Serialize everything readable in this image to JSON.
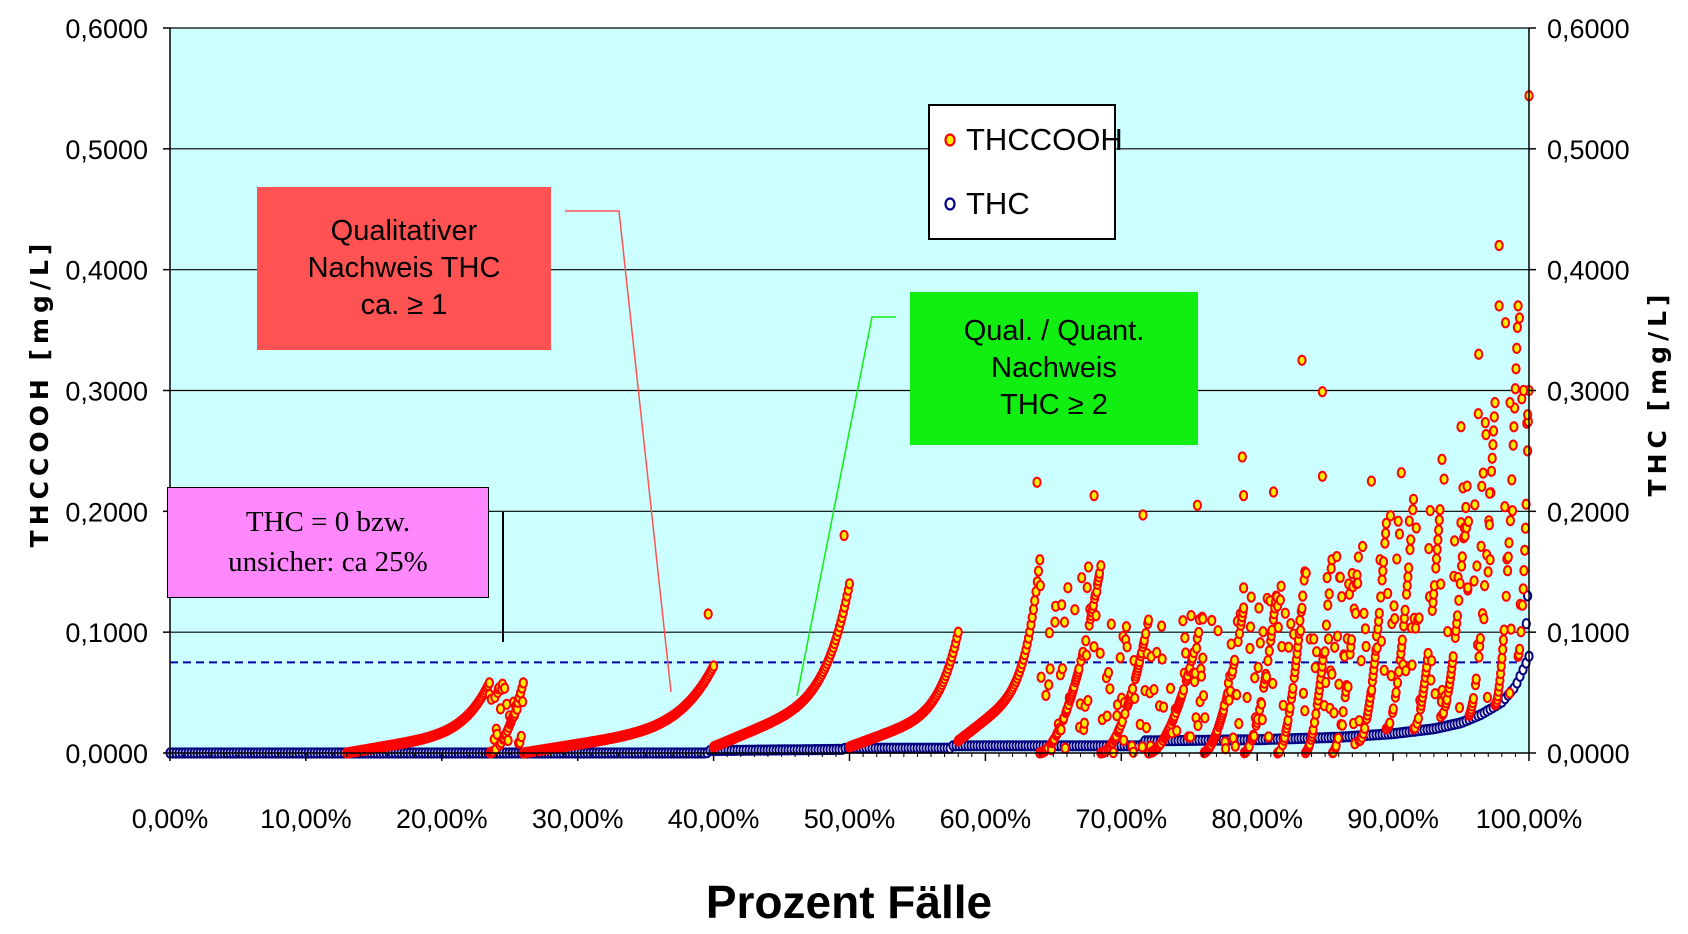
{
  "chart_data": {
    "type": "scatter",
    "xlabel": "Prozent Fälle",
    "ylabel_left": "THCCOOH [mg/L]",
    "ylabel_right": "THC [mg/L]",
    "xlim": [
      0,
      100
    ],
    "ylim": [
      0,
      0.6
    ],
    "y2lim": [
      0,
      0.6
    ],
    "x_ticks": [
      "0,00%",
      "10,00%",
      "20,00%",
      "30,00%",
      "40,00%",
      "50,00%",
      "60,00%",
      "70,00%",
      "80,00%",
      "90,00%",
      "100,00%"
    ],
    "y_ticks": [
      "0,0000",
      "0,1000",
      "0,2000",
      "0,3000",
      "0,4000",
      "0,5000",
      "0,6000"
    ],
    "y2_ticks": [
      "0,0000",
      "0,1000",
      "0,2000",
      "0,3000",
      "0,4000",
      "0,5000",
      "0,6000"
    ],
    "grid": true,
    "plot_background": "#ccffff",
    "reference_line": {
      "y": 0.075,
      "style": "dashed",
      "color": "#0000aa"
    },
    "legend": {
      "placement": "top-right"
    },
    "series": [
      {
        "name": "THCCOOH",
        "marker_fill": "#ffee00",
        "marker_edge": "#ff0000",
        "description": "sorted per THC group, values rising within each group",
        "segments": [
          {
            "x_start": 13,
            "x_end": 23.5,
            "y_start": 0.0,
            "y_end": 0.058
          },
          {
            "x_start": 23.5,
            "x_end": 26,
            "y_start": 0.0,
            "y_end": 0.058
          },
          {
            "x_start": 26,
            "x_end": 40,
            "y_start": 0.0,
            "y_end": 0.072
          },
          {
            "x_start": 40,
            "x_end": 50,
            "y_start": 0.005,
            "y_end": 0.14
          },
          {
            "x_start": 50,
            "x_end": 58,
            "y_start": 0.005,
            "y_end": 0.1
          },
          {
            "x_start": 58,
            "x_end": 64,
            "y_start": 0.01,
            "y_end": 0.16
          },
          {
            "x_start": 64,
            "x_end": 68.5,
            "y_start": 0.0,
            "y_end": 0.155
          },
          {
            "x_start": 68.5,
            "x_end": 72,
            "y_start": 0.0,
            "y_end": 0.11
          },
          {
            "x_start": 72,
            "x_end": 76,
            "y_start": 0.0,
            "y_end": 0.115
          },
          {
            "x_start": 76,
            "x_end": 79,
            "y_start": 0.0,
            "y_end": 0.12
          },
          {
            "x_start": 79,
            "x_end": 81.5,
            "y_start": 0.0,
            "y_end": 0.14
          },
          {
            "x_start": 81.5,
            "x_end": 83.5,
            "y_start": 0.0,
            "y_end": 0.15
          },
          {
            "x_start": 83.5,
            "x_end": 85.5,
            "y_start": 0.0,
            "y_end": 0.16
          },
          {
            "x_start": 85.5,
            "x_end": 87.5,
            "y_start": 0.0,
            "y_end": 0.17
          },
          {
            "x_start": 87.5,
            "x_end": 89.5,
            "y_start": 0.01,
            "y_end": 0.19
          },
          {
            "x_start": 89.5,
            "x_end": 91.5,
            "y_start": 0.02,
            "y_end": 0.21
          },
          {
            "x_start": 91.5,
            "x_end": 93.5,
            "y_start": 0.02,
            "y_end": 0.21
          },
          {
            "x_start": 93.5,
            "x_end": 95.5,
            "y_start": 0.03,
            "y_end": 0.23
          },
          {
            "x_start": 95.5,
            "x_end": 97.5,
            "y_start": 0.03,
            "y_end": 0.29
          },
          {
            "x_start": 97.5,
            "x_end": 99.2,
            "y_start": 0.04,
            "y_end": 0.37
          },
          {
            "x_start": 99.2,
            "x_end": 100,
            "y_start": 0.08,
            "y_end": 0.3
          }
        ],
        "outliers": [
          [
            39.6,
            0.115
          ],
          [
            49.6,
            0.18
          ],
          [
            63.8,
            0.224
          ],
          [
            68.0,
            0.213
          ],
          [
            71.6,
            0.197
          ],
          [
            75.6,
            0.205
          ],
          [
            78.9,
            0.245
          ],
          [
            79.0,
            0.213
          ],
          [
            81.2,
            0.216
          ],
          [
            83.3,
            0.325
          ],
          [
            84.8,
            0.299
          ],
          [
            84.8,
            0.229
          ],
          [
            88.4,
            0.225
          ],
          [
            90.6,
            0.232
          ],
          [
            93.6,
            0.243
          ],
          [
            95.0,
            0.27
          ],
          [
            96.3,
            0.33
          ],
          [
            97.1,
            0.215
          ],
          [
            97.8,
            0.37
          ],
          [
            97.8,
            0.42
          ],
          [
            98.6,
            0.29
          ],
          [
            99.3,
            0.36
          ],
          [
            99.6,
            0.3
          ],
          [
            99.9,
            0.28
          ],
          [
            100.0,
            0.544
          ]
        ]
      },
      {
        "name": "THC",
        "marker_fill": "#ffffff",
        "marker_edge": "#000080",
        "description": "sorted ascending",
        "curve": [
          [
            0,
            0.0
          ],
          [
            39.5,
            0.0
          ],
          [
            39.6,
            0.002
          ],
          [
            49.5,
            0.003
          ],
          [
            49.7,
            0.004
          ],
          [
            57.5,
            0.004
          ],
          [
            57.6,
            0.006
          ],
          [
            71.5,
            0.006
          ],
          [
            71.6,
            0.01
          ],
          [
            80,
            0.011
          ],
          [
            86,
            0.013
          ],
          [
            90,
            0.016
          ],
          [
            93,
            0.02
          ],
          [
            95,
            0.025
          ],
          [
            96.5,
            0.032
          ],
          [
            98,
            0.042
          ],
          [
            99,
            0.055
          ],
          [
            99.6,
            0.07
          ],
          [
            100,
            0.08
          ]
        ],
        "outliers": [
          [
            99.8,
            0.107
          ],
          [
            99.9,
            0.13
          ]
        ]
      }
    ],
    "annotations": [
      {
        "text": "Qualitativer\nNachweis THC\nca. ≥ 1",
        "background": "#ff5252"
      },
      {
        "text": "Qual. / Quant.\nNachweis\nTHC ≥ 2",
        "background": "#11ee11"
      },
      {
        "text": "THC = 0 bzw.\nunsicher: ca 25%",
        "background": "#ff88ff"
      }
    ]
  }
}
